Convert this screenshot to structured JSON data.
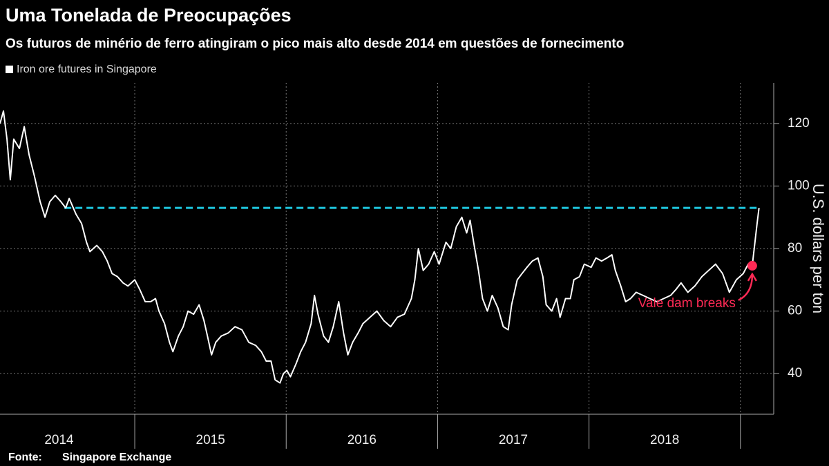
{
  "chart_data": {
    "type": "line",
    "title": "Uma Tonelada de Preocupações",
    "subtitle": "Os futuros de minério de ferro atingiram o pico mais alto desde 2014 em questões de fornecimento",
    "y_axis_label": "U.S. dollars per ton",
    "source_label": "Fonte:",
    "source": "Singapore Exchange",
    "xlim": [
      2014.11,
      2019.22
    ],
    "ylim": [
      27,
      133
    ],
    "yticks": [
      40,
      60,
      80,
      100,
      120
    ],
    "xticks": [
      {
        "value": 2014.5,
        "label": "2014"
      },
      {
        "value": 2015.5,
        "label": "2015"
      },
      {
        "value": 2016.5,
        "label": "2016"
      },
      {
        "value": 2017.5,
        "label": "2017"
      },
      {
        "value": 2018.5,
        "label": "2018"
      }
    ],
    "xgrid": [
      2015,
      2016,
      2017,
      2018,
      2019
    ],
    "grid": true,
    "x": [
      2014.11,
      2014.133,
      2014.156,
      2014.178,
      2014.201,
      2014.238,
      2014.27,
      2014.302,
      2014.338,
      2014.375,
      2014.407,
      2014.439,
      2014.475,
      2014.512,
      2014.544,
      2014.567,
      2014.612,
      2014.649,
      2014.681,
      2014.704,
      2014.749,
      2014.786,
      2014.818,
      2014.85,
      2014.886,
      2014.923,
      2014.955,
      2015.0,
      2015.032,
      2015.069,
      2015.105,
      2015.137,
      2015.16,
      2015.197,
      2015.229,
      2015.252,
      2015.288,
      2015.32,
      2015.352,
      2015.389,
      2015.425,
      2015.457,
      2015.48,
      2015.507,
      2015.535,
      2015.571,
      2015.617,
      2015.662,
      2015.708,
      2015.753,
      2015.799,
      2015.836,
      2015.868,
      2015.9,
      2015.927,
      2015.959,
      2015.982,
      2016.005,
      2016.028,
      2016.064,
      2016.096,
      2016.128,
      2016.165,
      2016.187,
      2016.21,
      2016.247,
      2016.279,
      2016.311,
      2016.347,
      2016.379,
      2016.407,
      2016.439,
      2016.475,
      2016.507,
      2016.553,
      2016.599,
      2016.644,
      2016.69,
      2016.735,
      2016.781,
      2016.827,
      2016.85,
      2016.873,
      2016.905,
      2016.941,
      2016.978,
      2017.01,
      2017.055,
      2017.087,
      2017.124,
      2017.16,
      2017.192,
      2017.215,
      2017.238,
      2017.27,
      2017.297,
      2017.329,
      2017.361,
      2017.398,
      2017.434,
      2017.466,
      2017.489,
      2017.526,
      2017.558,
      2017.59,
      2017.626,
      2017.663,
      2017.695,
      2017.717,
      2017.754,
      2017.786,
      2017.809,
      2017.845,
      2017.877,
      2017.9,
      2017.937,
      2017.969,
      2018.014,
      2018.046,
      2018.083,
      2018.119,
      2018.151,
      2018.174,
      2018.21,
      2018.242,
      2018.274,
      2018.311,
      2018.357,
      2018.402,
      2018.448,
      2018.493,
      2018.539,
      2018.576,
      2018.608,
      2018.653,
      2018.699,
      2018.745,
      2018.79,
      2018.836,
      2018.882,
      2018.927,
      2018.973,
      2019.019,
      2019.051,
      2019.078,
      2019.096,
      2019.11,
      2019.123
    ],
    "series": [
      {
        "name": "Iron ore futures in Singapore",
        "color": "#ffffff",
        "values": [
          120,
          124,
          115,
          102,
          115,
          112,
          119,
          110,
          103,
          95,
          90,
          95,
          97,
          95,
          93,
          96,
          91,
          88,
          82,
          79,
          81,
          79,
          76,
          72,
          71,
          69,
          68,
          70,
          67,
          63,
          63,
          64,
          60,
          56,
          50,
          47,
          52,
          55,
          60,
          59,
          62,
          57,
          52,
          46,
          50,
          52,
          53,
          55,
          54,
          50,
          49,
          47,
          44,
          44,
          38,
          37,
          40,
          41,
          39,
          43,
          47,
          50,
          56,
          65,
          59,
          52,
          50,
          55,
          63,
          53,
          46,
          50,
          53,
          56,
          58,
          60,
          57,
          55,
          58,
          59,
          64,
          70,
          80,
          73,
          75,
          79,
          75,
          82,
          80,
          87,
          90,
          85,
          89,
          82,
          73,
          64,
          60,
          65,
          61,
          55,
          54,
          62,
          70,
          72,
          74,
          76,
          77,
          71,
          62,
          60,
          64,
          58,
          64,
          64,
          70,
          71,
          75,
          74,
          77,
          76,
          77,
          78,
          73,
          68,
          63,
          64,
          66,
          65,
          64,
          63,
          64,
          65,
          67,
          69,
          66,
          68,
          71,
          73,
          75,
          72,
          66,
          70,
          72,
          75,
          74.5,
          82,
          88,
          93
        ]
      }
    ],
    "reference_line": {
      "value": 93,
      "x_start": 2014.535,
      "x_end": 2019.123,
      "color": "#1ec8e0"
    },
    "annotations": [
      {
        "text": "Vale dam breaks",
        "x": 2019.078,
        "y": 74.5,
        "color": "#ff2a55"
      }
    ]
  }
}
